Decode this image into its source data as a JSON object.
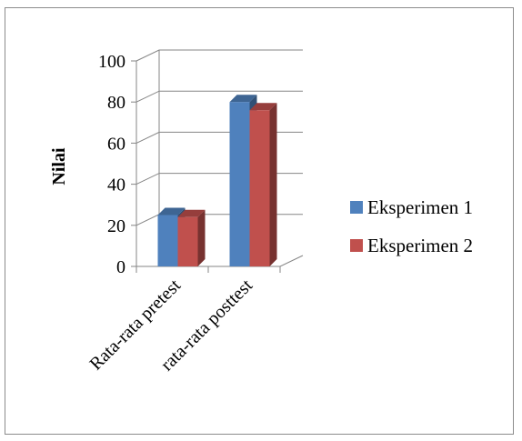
{
  "chart_data": {
    "type": "bar",
    "title": "",
    "xlabel": "",
    "ylabel": "Nilai",
    "ylim": [
      0,
      100
    ],
    "yticks": [
      0,
      20,
      40,
      60,
      80,
      100
    ],
    "grid": true,
    "legend_position": "right",
    "categories": [
      "Rata-rata pretest",
      "rata-rata posttest"
    ],
    "series": [
      {
        "name": "Eksperimen 1",
        "values": [
          25,
          80
        ],
        "color": "#4F81BD"
      },
      {
        "name": "Eksperimen 2",
        "values": [
          24,
          76
        ],
        "color": "#C0504D"
      }
    ]
  }
}
